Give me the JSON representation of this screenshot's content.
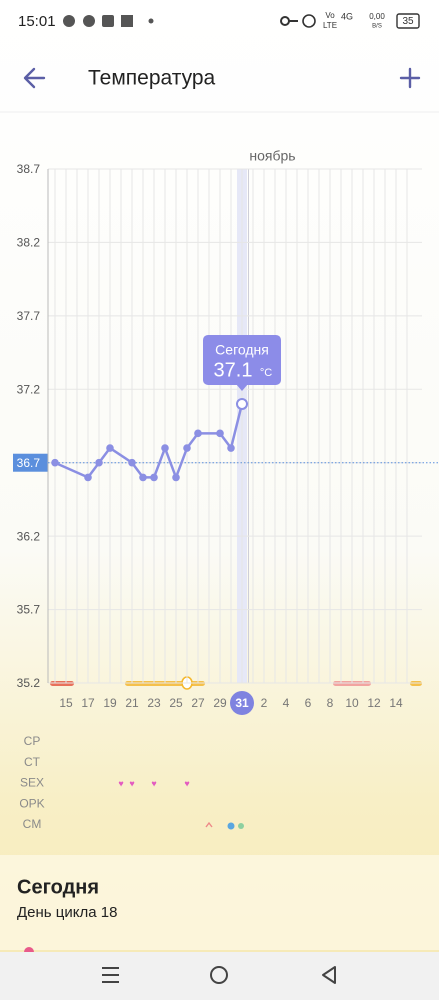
{
  "status_bar": {
    "time": "15:01",
    "volte_top": "Vo",
    "volte_bottom": "LTE",
    "net": "4G",
    "speed_top": "0,00",
    "speed_bottom": "B/S",
    "battery": "35"
  },
  "header": {
    "title": "Температура"
  },
  "chart_data": {
    "type": "line",
    "month_label": "ноябрь",
    "categories": [
      null,
      "15",
      null,
      "17",
      null,
      "19",
      null,
      "21",
      null,
      "23",
      null,
      "25",
      null,
      "27",
      null,
      "29",
      null,
      "31",
      null,
      "2",
      null,
      "4",
      null,
      "6",
      null,
      "8",
      null,
      "10",
      null,
      "12",
      null,
      "14",
      null
    ],
    "values": [
      36.7,
      null,
      null,
      36.6,
      36.7,
      36.8,
      null,
      36.7,
      36.6,
      36.6,
      36.8,
      36.6,
      36.8,
      36.9,
      null,
      36.9,
      36.8,
      37.1,
      null,
      null,
      null,
      null,
      null,
      null,
      null,
      null,
      null,
      null,
      null,
      null,
      null,
      null,
      null
    ],
    "color": "#8b8fe3",
    "ylim": [
      35.2,
      38.7
    ],
    "yticks": [
      35.2,
      35.7,
      36.2,
      36.7,
      37.2,
      37.7,
      38.2,
      38.7
    ],
    "coverline": 36.7,
    "grid": true,
    "tooltip": {
      "title": "Сегодня",
      "unit": "°C"
    }
  },
  "rows": [
    "CP",
    "CT",
    "SEX",
    "OPK",
    "CM"
  ],
  "today_card": {
    "title": "Сегодня",
    "cycle_day": "День цикла 18"
  }
}
